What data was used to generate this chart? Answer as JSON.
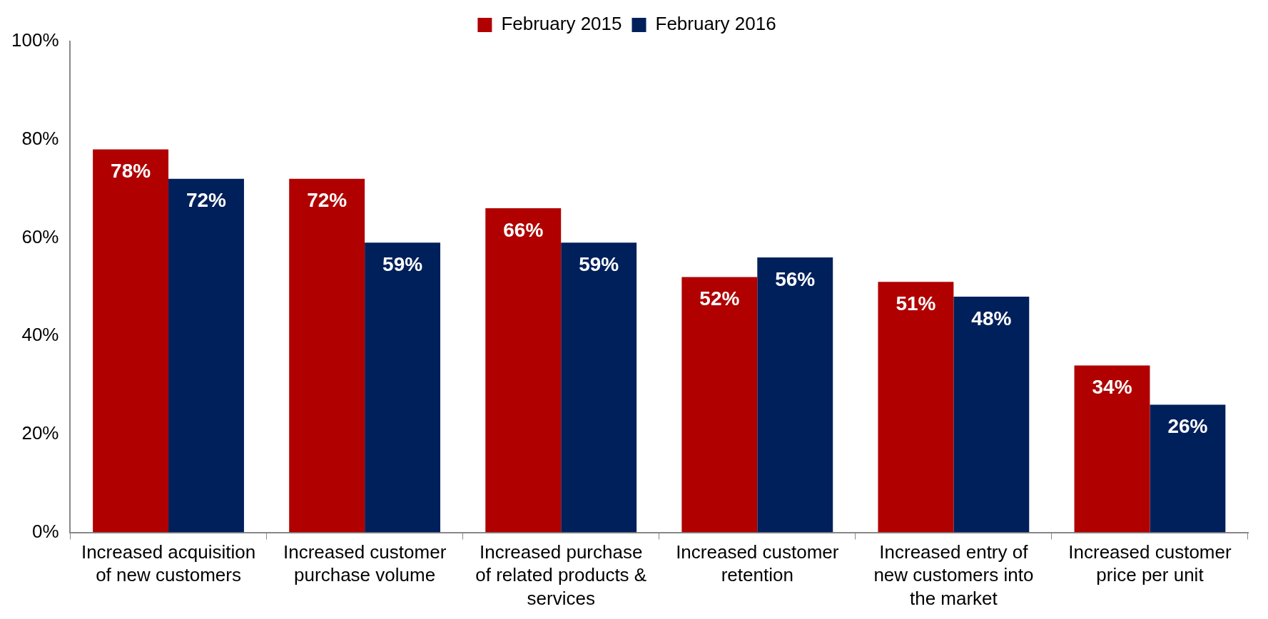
{
  "chart_data": {
    "type": "bar",
    "categories": [
      "Increased acquisition of new customers",
      "Increased customer purchase volume",
      "Increased purchase of related products & services",
      "Increased customer retention",
      "Increased entry of new customers into the market",
      "Increased customer price per unit"
    ],
    "series": [
      {
        "name": "February 2015",
        "color": "#b00000",
        "values": [
          78,
          72,
          66,
          52,
          51,
          34
        ],
        "value_labels": [
          "78%",
          "72%",
          "66%",
          "52%",
          "51%",
          "34%"
        ]
      },
      {
        "name": "February 2016",
        "color": "#00205b",
        "values": [
          72,
          59,
          59,
          56,
          48,
          26
        ],
        "value_labels": [
          "72%",
          "59%",
          "59%",
          "56%",
          "48%",
          "26%"
        ]
      }
    ],
    "ylim": [
      0,
      100
    ],
    "yticks": [
      {
        "value": 0,
        "label": "0%"
      },
      {
        "value": 20,
        "label": "20%"
      },
      {
        "value": 40,
        "label": "40%"
      },
      {
        "value": 60,
        "label": "60%"
      },
      {
        "value": 80,
        "label": "80%"
      },
      {
        "value": 100,
        "label": "100%"
      }
    ],
    "grid": false,
    "legend": "top"
  }
}
